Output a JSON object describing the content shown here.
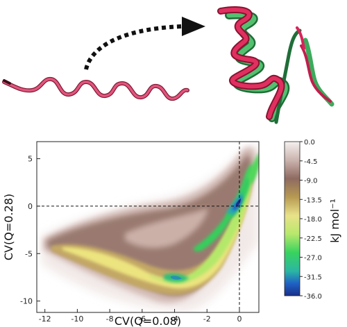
{
  "chart_data": {
    "type": "heatmap",
    "title": "",
    "xlabel": "CV(Q=0.08)",
    "ylabel": "CV(Q=0.28)",
    "xlim": [
      -12.5,
      1.2
    ],
    "ylim": [
      -11.2,
      6.8
    ],
    "x_ticks": [
      "-12",
      "-10",
      "-8",
      "-6",
      "-4",
      "-2",
      "0"
    ],
    "y_ticks": [
      "5",
      "0",
      "-5",
      "-10"
    ],
    "reference_lines": {
      "x": 0,
      "y": 0,
      "style": "dashed"
    },
    "colorbar": {
      "label": "kJ mol⁻¹",
      "ticks": [
        "0.0",
        "-4.5",
        "-9.0",
        "-13.5",
        "-18.0",
        "-22.5",
        "-27.0",
        "-31.5",
        "-36.0"
      ],
      "range": [
        0,
        -36
      ]
    },
    "basins": [
      {
        "x": -0.5,
        "y": -1.0,
        "value": -36
      },
      {
        "x": -4.0,
        "y": -9.0,
        "value": -27
      },
      {
        "x": -2.2,
        "y": -6.0,
        "value": -24
      },
      {
        "x": 0.7,
        "y": 4.2,
        "value": -22
      }
    ]
  },
  "colors": {
    "colormap": [
      "#f5f1ef",
      "#cbb3ae",
      "#8e6a60",
      "#b79a52",
      "#e9e28a",
      "#b7e86c",
      "#38d35f",
      "#2cb6a4",
      "#1f62c4",
      "#1a2f8a"
    ],
    "coil": "#d4456a",
    "helix_red": "#d8245a",
    "helix_green": "#3daa5c"
  },
  "icons": [
    "dotted-curved-arrow-icon",
    "unfolded-coil-icon",
    "folded-helix-structure-icon"
  ]
}
